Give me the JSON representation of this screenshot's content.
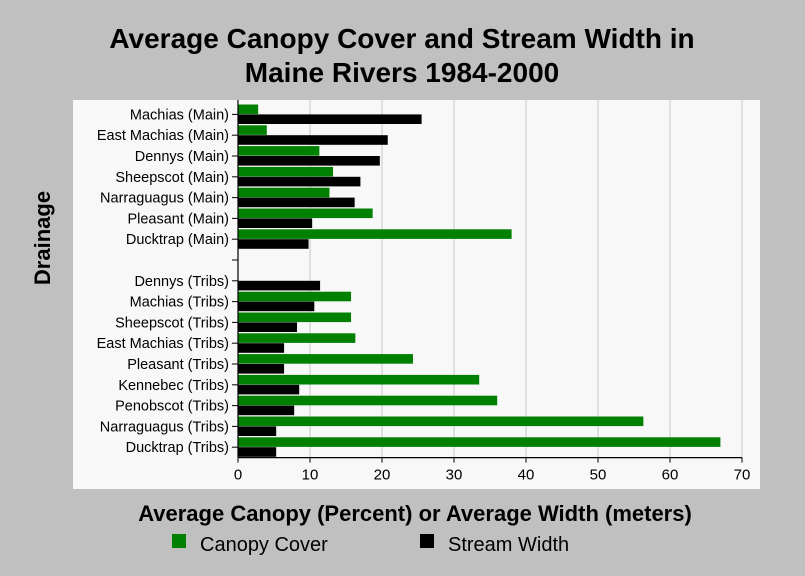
{
  "chart_data": {
    "type": "bar",
    "orientation": "horizontal",
    "title": "Average Canopy Cover and Stream Width in Maine Rivers 1984-2000",
    "title_lines": [
      "Average Canopy Cover and Stream Width in",
      "Maine Rivers 1984-2000"
    ],
    "xlabel": "Average Canopy (Percent) or Average Width (meters)",
    "ylabel": "Drainage",
    "xlim": [
      0,
      70
    ],
    "xticks": [
      0,
      10,
      20,
      30,
      40,
      50,
      60,
      70
    ],
    "grid": "vertical",
    "legend_position": "bottom",
    "categories": [
      "Machias (Main)",
      "East Machias (Main)",
      "Dennys (Main)",
      "Sheepscot (Main)",
      "Narraguagus (Main)",
      "Pleasant (Main)",
      "Ducktrap (Main)",
      "",
      "Dennys (Tribs)",
      "Machias (Tribs)",
      "Sheepscot (Tribs)",
      "East Machias (Tribs)",
      "Pleasant (Tribs)",
      "Kennebec (Tribs)",
      "Penobscot (Tribs)",
      "Narraguagus (Tribs)",
      "Ducktrap (Tribs)"
    ],
    "series": [
      {
        "name": "Canopy Cover",
        "color": "#008000",
        "values": [
          2.8,
          4.0,
          11.3,
          13.2,
          12.7,
          18.7,
          38.0,
          null,
          0,
          15.7,
          15.7,
          16.3,
          24.3,
          33.5,
          36.0,
          56.3,
          67.0
        ]
      },
      {
        "name": "Stream Width",
        "color": "#000000",
        "values": [
          25.5,
          20.8,
          19.7,
          17.0,
          16.2,
          10.3,
          9.8,
          null,
          11.4,
          10.6,
          8.2,
          6.4,
          6.4,
          8.5,
          7.8,
          5.3,
          5.3
        ]
      }
    ]
  }
}
